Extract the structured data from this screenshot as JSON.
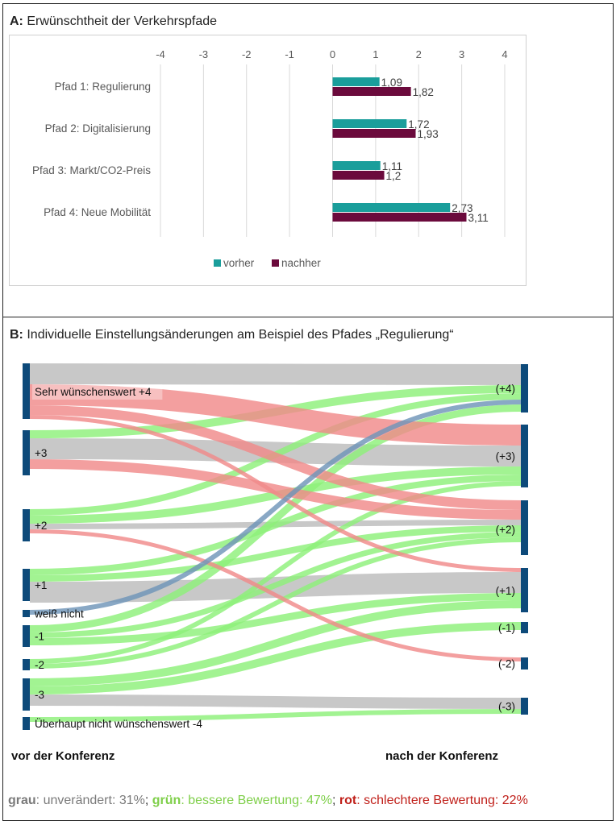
{
  "panel_a": {
    "title_prefix": "A:",
    "title_text": "Erwünschtheit der Verkehrspfade"
  },
  "panel_b": {
    "title_prefix": "B:",
    "title_text": "Individuelle Einstellungsänderungen am Beispiel des Pfades „Regulierung“",
    "footer_left": "vor der Konferenz",
    "footer_right": "nach der Konferenz"
  },
  "summary": {
    "grey_word": "grau",
    "grey_text": ": unverändert: 31%",
    "green_word": "grün",
    "green_text": ": bessere Bewertung: 47%",
    "red_word": "rot",
    "red_text": ": schlechtere Bewertung: 22%",
    "separator": ";"
  },
  "colors": {
    "vorher": "#1a9e9b",
    "nachher": "#6b0a3c",
    "flow_grey": "#c8c8c8",
    "flow_green": "#8ef07a",
    "flow_red": "#f08a8a",
    "flow_blue": "#6f95b8",
    "node": "#0d4a7a"
  },
  "chart_data": [
    {
      "type": "bar",
      "orientation": "horizontal",
      "categories": [
        "Pfad 1: Regulierung",
        "Pfad 2: Digitalisierung",
        "Pfad 3: Markt/CO2-Preis",
        "Pfad 4: Neue Mobilität"
      ],
      "series": [
        {
          "name": "vorher",
          "values": [
            1.09,
            1.72,
            1.11,
            2.73
          ],
          "labels": [
            "1,09",
            "1,72",
            "1,11",
            "2,73"
          ]
        },
        {
          "name": "nachher",
          "values": [
            1.82,
            1.93,
            1.2,
            3.11
          ],
          "labels": [
            "1,82",
            "1,93",
            "1,2",
            "3,11"
          ]
        }
      ],
      "xlim": [
        -4,
        4
      ],
      "xticks": [
        "-4",
        "-3",
        "-2",
        "-1",
        "0",
        "1",
        "2",
        "3",
        "4"
      ],
      "grid": true,
      "legend": "bottom"
    },
    {
      "type": "sankey",
      "left_nodes": [
        {
          "id": "L4",
          "label": "Sehr wünschenswert +4"
        },
        {
          "id": "L3",
          "label": "+3"
        },
        {
          "id": "L2",
          "label": "+2"
        },
        {
          "id": "L1",
          "label": "+1"
        },
        {
          "id": "LW",
          "label": "weiß nicht"
        },
        {
          "id": "Lm1",
          "label": "-1"
        },
        {
          "id": "Lm2",
          "label": "-2"
        },
        {
          "id": "Lm3",
          "label": "-3"
        },
        {
          "id": "Lm4",
          "label": "Überhaupt nicht wünschenswert -4"
        }
      ],
      "right_nodes": [
        {
          "id": "R4",
          "label": "(+4)"
        },
        {
          "id": "R3",
          "label": "(+3)"
        },
        {
          "id": "R2",
          "label": "(+2)"
        },
        {
          "id": "R1",
          "label": "(+1)"
        },
        {
          "id": "Rm1",
          "label": "(-1)"
        },
        {
          "id": "Rm2",
          "label": "(-2)"
        },
        {
          "id": "Rm3",
          "label": "(-3)"
        }
      ],
      "links": [
        {
          "from": "L4",
          "to": "R4",
          "kind": "same"
        },
        {
          "from": "L4",
          "to": "R3",
          "kind": "worse"
        },
        {
          "from": "L4",
          "to": "R2",
          "kind": "worse"
        },
        {
          "from": "L4",
          "to": "R1",
          "kind": "worse"
        },
        {
          "from": "L3",
          "to": "R4",
          "kind": "better"
        },
        {
          "from": "L3",
          "to": "R3",
          "kind": "same"
        },
        {
          "from": "L3",
          "to": "R2",
          "kind": "worse"
        },
        {
          "from": "L2",
          "to": "R4",
          "kind": "better"
        },
        {
          "from": "L2",
          "to": "R3",
          "kind": "better"
        },
        {
          "from": "L2",
          "to": "R2",
          "kind": "same"
        },
        {
          "from": "L2",
          "to": "Rm2",
          "kind": "worse"
        },
        {
          "from": "L1",
          "to": "R3",
          "kind": "better"
        },
        {
          "from": "L1",
          "to": "R2",
          "kind": "better"
        },
        {
          "from": "L1",
          "to": "R1",
          "kind": "same"
        },
        {
          "from": "LW",
          "to": "R4",
          "kind": "unknown"
        },
        {
          "from": "Lm1",
          "to": "R4",
          "kind": "better"
        },
        {
          "from": "Lm1",
          "to": "R2",
          "kind": "better"
        },
        {
          "from": "Lm1",
          "to": "R1",
          "kind": "better"
        },
        {
          "from": "Lm2",
          "to": "R3",
          "kind": "better"
        },
        {
          "from": "Lm2",
          "to": "R2",
          "kind": "better"
        },
        {
          "from": "Lm3",
          "to": "R1",
          "kind": "better"
        },
        {
          "from": "Lm3",
          "to": "Rm1",
          "kind": "better"
        },
        {
          "from": "Lm3",
          "to": "Rm3",
          "kind": "same"
        },
        {
          "from": "Lm4",
          "to": "Rm3",
          "kind": "better"
        }
      ]
    }
  ]
}
